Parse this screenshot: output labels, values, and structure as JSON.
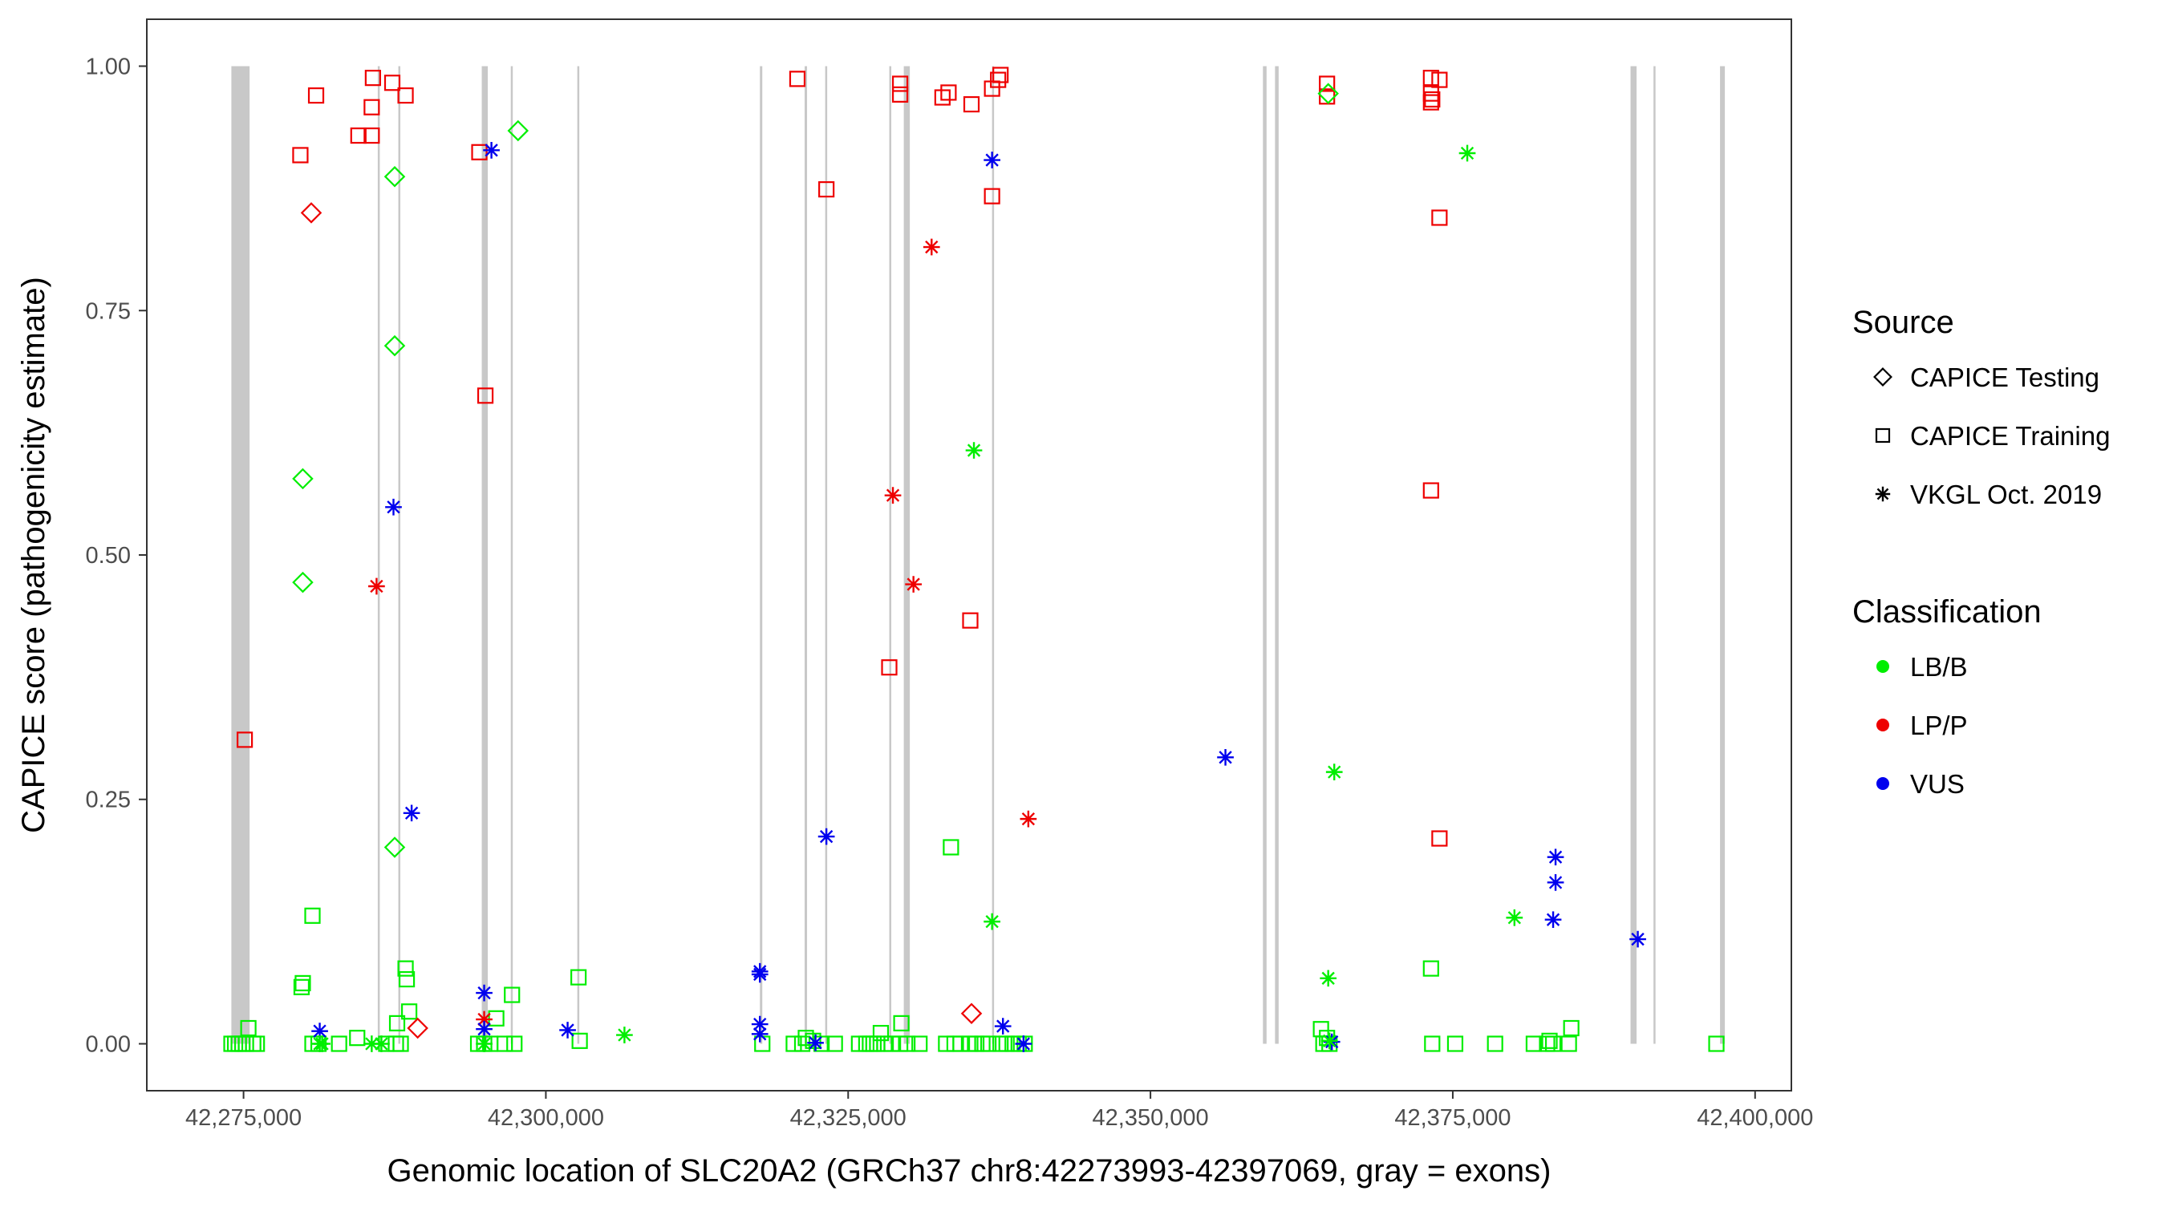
{
  "chart_data": {
    "type": "scatter",
    "title": "",
    "xlabel": "Genomic location of SLC20A2 (GRCh37 chr8:42273993-42397069, gray = exons)",
    "ylabel": "CAPICE score (pathogenicity estimate)",
    "xlim": [
      42267000,
      42403000
    ],
    "ylim": [
      -0.048,
      1.048
    ],
    "x_ticks": [
      42275000,
      42300000,
      42325000,
      42350000,
      42375000,
      42400000
    ],
    "x_tick_labels": [
      "42,275,000",
      "42,300,000",
      "42,325,000",
      "42,350,000",
      "42,375,000",
      "42,400,000"
    ],
    "y_ticks": [
      0,
      0.25,
      0.5,
      0.75,
      1
    ],
    "y_tick_labels": [
      "0.00",
      "0.25",
      "0.50",
      "0.75",
      "1.00"
    ],
    "grid": false,
    "exons": [
      [
        42273993,
        42275500
      ],
      [
        42286100,
        42286200
      ],
      [
        42287800,
        42287900
      ],
      [
        42294700,
        42295200
      ],
      [
        42297100,
        42297200
      ],
      [
        42302600,
        42302700
      ],
      [
        42317700,
        42317900
      ],
      [
        42321400,
        42321600
      ],
      [
        42323100,
        42323200
      ],
      [
        42328400,
        42328500
      ],
      [
        42329600,
        42330100
      ],
      [
        42336900,
        42337000
      ],
      [
        42359300,
        42359600
      ],
      [
        42360300,
        42360600
      ],
      [
        42389700,
        42390200
      ],
      [
        42391600,
        42391700
      ],
      [
        42397100,
        42397500
      ]
    ],
    "legend": {
      "placement": "right",
      "source_title": "Source",
      "source_entries": [
        {
          "label": "CAPICE Testing",
          "shape": "diamond"
        },
        {
          "label": "CAPICE Training",
          "shape": "square"
        },
        {
          "label": "VKGL Oct. 2019",
          "shape": "asterisk"
        }
      ],
      "class_title": "Classification",
      "class_entries": [
        {
          "label": "LB/B",
          "color": "#00ee00"
        },
        {
          "label": "LP/P",
          "color": "#ee0000"
        },
        {
          "label": "VUS",
          "color": "#0000ee"
        }
      ]
    },
    "colors": {
      "LB/B": "#00ee00",
      "LP/P": "#ee0000",
      "VUS": "#0000ee",
      "exon": "#c8c8c8"
    },
    "series": [
      {
        "source": "CAPICE Training",
        "classification": "LP/P",
        "points": [
          [
            42275100,
            0.311
          ],
          [
            42279700,
            0.909
          ],
          [
            42281000,
            0.97
          ],
          [
            42284500,
            0.929
          ],
          [
            42285600,
            0.929
          ],
          [
            42285600,
            0.958
          ],
          [
            42285700,
            0.988
          ],
          [
            42287300,
            0.983
          ],
          [
            42288400,
            0.97
          ],
          [
            42294500,
            0.912
          ],
          [
            42295000,
            0.663
          ],
          [
            42320800,
            0.987
          ],
          [
            42323200,
            0.874
          ],
          [
            42328400,
            0.385
          ],
          [
            42329300,
            0.982
          ],
          [
            42329300,
            0.971
          ],
          [
            42332800,
            0.968
          ],
          [
            42333300,
            0.973
          ],
          [
            42335100,
            0.433
          ],
          [
            42335200,
            0.961
          ],
          [
            42336900,
            0.977
          ],
          [
            42336900,
            0.867
          ],
          [
            42337400,
            0.986
          ],
          [
            42337600,
            0.991
          ],
          [
            42364600,
            0.982
          ],
          [
            42364600,
            0.969
          ],
          [
            42373200,
            0.988
          ],
          [
            42373200,
            0.972
          ],
          [
            42373200,
            0.963
          ],
          [
            42373200,
            0.566
          ],
          [
            42373300,
            0.966
          ],
          [
            42373900,
            0.986
          ],
          [
            42373900,
            0.21
          ],
          [
            42373900,
            0.845
          ]
        ]
      },
      {
        "source": "CAPICE Training",
        "classification": "LB/B",
        "points": [
          [
            42274000,
            0
          ],
          [
            42274300,
            0
          ],
          [
            42274600,
            0
          ],
          [
            42274900,
            0
          ],
          [
            42275200,
            0
          ],
          [
            42275400,
            0.016
          ],
          [
            42275800,
            0
          ],
          [
            42276100,
            0
          ],
          [
            42279800,
            0.058
          ],
          [
            42279900,
            0.062
          ],
          [
            42280700,
            0.131
          ],
          [
            42280700,
            0
          ],
          [
            42281200,
            0
          ],
          [
            42282900,
            0
          ],
          [
            42284400,
            0.006
          ],
          [
            42286800,
            0
          ],
          [
            42287600,
            0
          ],
          [
            42287700,
            0.021
          ],
          [
            42288000,
            0
          ],
          [
            42288400,
            0.077
          ],
          [
            42288500,
            0.066
          ],
          [
            42288700,
            0.033
          ],
          [
            42294400,
            0
          ],
          [
            42294900,
            0
          ],
          [
            42295400,
            0
          ],
          [
            42295900,
            0.026
          ],
          [
            42296600,
            0
          ],
          [
            42297200,
            0.05
          ],
          [
            42297400,
            0
          ],
          [
            42302700,
            0.068
          ],
          [
            42302800,
            0.003
          ],
          [
            42317900,
            0
          ],
          [
            42320500,
            0
          ],
          [
            42321200,
            0
          ],
          [
            42321500,
            0.006
          ],
          [
            42322100,
            0.003
          ],
          [
            42322800,
            0
          ],
          [
            42323900,
            0
          ],
          [
            42325900,
            0
          ],
          [
            42326500,
            0
          ],
          [
            42326800,
            0
          ],
          [
            42327100,
            0
          ],
          [
            42327400,
            0
          ],
          [
            42327700,
            0.011
          ],
          [
            42328000,
            0
          ],
          [
            42328600,
            0
          ],
          [
            42329300,
            0
          ],
          [
            42329400,
            0.021
          ],
          [
            42329900,
            0
          ],
          [
            42330900,
            0
          ],
          [
            42333100,
            0
          ],
          [
            42333500,
            0.201
          ],
          [
            42333800,
            0
          ],
          [
            42334300,
            0
          ],
          [
            42335100,
            0
          ],
          [
            42335600,
            0
          ],
          [
            42336100,
            0
          ],
          [
            42336600,
            0
          ],
          [
            42337600,
            0
          ],
          [
            42338100,
            0
          ],
          [
            42338600,
            0
          ],
          [
            42339100,
            0
          ],
          [
            42339600,
            0
          ],
          [
            42364100,
            0.015
          ],
          [
            42364300,
            0
          ],
          [
            42364600,
            0.006
          ],
          [
            42364800,
            0
          ],
          [
            42373200,
            0.077
          ],
          [
            42373300,
            0
          ],
          [
            42375200,
            0
          ],
          [
            42378500,
            0
          ],
          [
            42381700,
            0
          ],
          [
            42382800,
            0
          ],
          [
            42383000,
            0.003
          ],
          [
            42383300,
            0
          ],
          [
            42384800,
            0.016
          ],
          [
            42384600,
            0
          ],
          [
            42396800,
            0
          ]
        ]
      },
      {
        "source": "CAPICE Testing",
        "classification": "LB/B",
        "points": [
          [
            42279900,
            0.578
          ],
          [
            42279900,
            0.472
          ],
          [
            42287500,
            0.887
          ],
          [
            42287500,
            0.714
          ],
          [
            42287500,
            0.201
          ],
          [
            42297700,
            0.934
          ],
          [
            42364700,
            0.972
          ]
        ]
      },
      {
        "source": "CAPICE Testing",
        "classification": "LP/P",
        "points": [
          [
            42280600,
            0.85
          ],
          [
            42289400,
            0.016
          ],
          [
            42335200,
            0.031
          ]
        ]
      },
      {
        "source": "VKGL Oct. 2019",
        "classification": "LP/P",
        "points": [
          [
            42286000,
            0.468
          ],
          [
            42294900,
            0.025
          ],
          [
            42328700,
            0.561
          ],
          [
            42330400,
            0.47
          ],
          [
            42331900,
            0.815
          ],
          [
            42339900,
            0.23
          ]
        ]
      },
      {
        "source": "VKGL Oct. 2019",
        "classification": "VUS",
        "points": [
          [
            42281300,
            0.013
          ],
          [
            42287400,
            0.549
          ],
          [
            42288900,
            0.236
          ],
          [
            42294900,
            0.052
          ],
          [
            42294900,
            0.015
          ],
          [
            42295500,
            0.914
          ],
          [
            42301800,
            0.014
          ],
          [
            42317700,
            0.074
          ],
          [
            42317700,
            0.071
          ],
          [
            42317700,
            0.02
          ],
          [
            42317700,
            0.01
          ],
          [
            42322300,
            0.001
          ],
          [
            42323200,
            0.212
          ],
          [
            42336900,
            0.904
          ],
          [
            42337800,
            0.018
          ],
          [
            42339500,
            0
          ],
          [
            42356200,
            0.293
          ],
          [
            42365000,
            0.002
          ],
          [
            42383500,
            0.191
          ],
          [
            42383500,
            0.165
          ],
          [
            42383300,
            0.127
          ],
          [
            42390300,
            0.107
          ]
        ]
      },
      {
        "source": "VKGL Oct. 2019",
        "classification": "LB/B",
        "points": [
          [
            42281300,
            0
          ],
          [
            42281500,
            0
          ],
          [
            42285600,
            0
          ],
          [
            42286400,
            0
          ],
          [
            42294900,
            0
          ],
          [
            42306500,
            0.009
          ],
          [
            42335400,
            0.607
          ],
          [
            42336900,
            0.125
          ],
          [
            42364700,
            0.067
          ],
          [
            42365200,
            0.278
          ],
          [
            42364800,
            0.003
          ],
          [
            42376200,
            0.911
          ],
          [
            42380100,
            0.129
          ]
        ]
      }
    ]
  }
}
